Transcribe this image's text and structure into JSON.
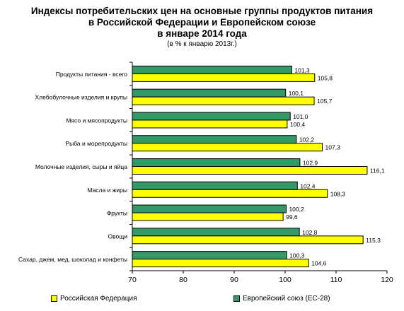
{
  "title": {
    "line1": "Индексы потребительских цен на основные группы продуктов питания",
    "line2": "в Российской Федерации и Европейском союзе",
    "line3": "в январе 2014 года",
    "subtitle": "(в % к январю 2013г.)"
  },
  "colors": {
    "russia": "#ffff00",
    "eu": "#339966",
    "outline": "#000000"
  },
  "legend": {
    "russia": "Российская Федерация",
    "eu": "Европейский союз (ЕС-28)"
  },
  "chart_data": {
    "type": "bar",
    "orientation": "horizontal",
    "categories": [
      "Продукты питания - всего",
      "Хлебобулочные изделия и крупы",
      "Мясо и мясопродукты",
      "Рыба и морепродукты",
      "Молочные изделия, сыры и яйца",
      "Масла и жиры",
      "Фрукты",
      "Овощи",
      "Сахар, джем, мед, шоколад и конфеты"
    ],
    "series": [
      {
        "name": "Европейский союз (ЕС-28)",
        "color": "#339966",
        "values": [
          101.3,
          100.1,
          101.0,
          102.2,
          102.9,
          102.4,
          100.2,
          102.8,
          100.3
        ],
        "labels": [
          "101,3",
          "100,1",
          "101,0",
          "102,2",
          "102,9",
          "102,4",
          "100,2",
          "102,8",
          "100,3"
        ]
      },
      {
        "name": "Российская Федерация",
        "color": "#ffff00",
        "values": [
          105.8,
          105.7,
          100.4,
          107.3,
          116.1,
          108.3,
          99.6,
          115.3,
          104.6
        ],
        "labels": [
          "105,8",
          "105,7",
          "100,4",
          "107,3",
          "116,1",
          "108,3",
          "99,6",
          "115,3",
          "104,6"
        ]
      }
    ],
    "xlim": [
      70,
      120
    ],
    "xticks": [
      70,
      80,
      90,
      100,
      110,
      120
    ],
    "xtick_labels": [
      "70",
      "80",
      "90",
      "100",
      "110",
      "120"
    ],
    "grid": false,
    "legend_position": "bottom"
  }
}
